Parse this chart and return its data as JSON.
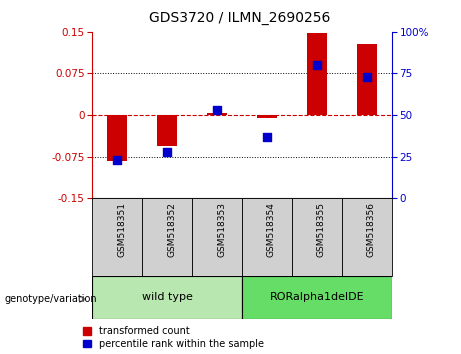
{
  "title": "GDS3720 / ILMN_2690256",
  "samples": [
    "GSM518351",
    "GSM518352",
    "GSM518353",
    "GSM518354",
    "GSM518355",
    "GSM518356"
  ],
  "red_values": [
    -0.083,
    -0.055,
    0.003,
    -0.005,
    0.148,
    0.128
  ],
  "blue_values_pct": [
    23,
    28,
    53,
    37,
    80,
    73
  ],
  "ylim_left": [
    -0.15,
    0.15
  ],
  "ylim_right": [
    0,
    100
  ],
  "yticks_left": [
    -0.15,
    -0.075,
    0,
    0.075,
    0.15
  ],
  "yticks_right": [
    0,
    25,
    50,
    75,
    100
  ],
  "left_color": "#cc0000",
  "right_color": "#0000cc",
  "hline_color": "#cc0000",
  "bar_width": 0.4,
  "dot_size": 28,
  "legend_red_label": "transformed count",
  "legend_blue_label": "percentile rank within the sample",
  "genotype_label": "genotype/variation",
  "wt_label": "wild type",
  "ror_label": "RORalpha1delDE",
  "wt_color": "#b8e8b0",
  "ror_color": "#66dd66",
  "sample_box_color": "#d0d0d0"
}
